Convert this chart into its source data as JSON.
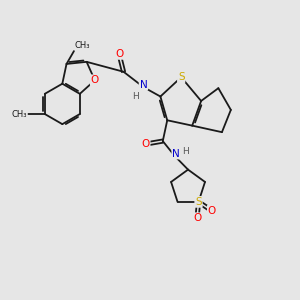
{
  "background_color": "#e6e6e6",
  "fig_size": [
    3.0,
    3.0
  ],
  "dpi": 100,
  "bond_color": "#1a1a1a",
  "bond_width": 1.3,
  "atom_colors": {
    "O": "#ff0000",
    "N": "#0000cd",
    "S": "#ccaa00",
    "H": "#555555",
    "C": "#1a1a1a"
  },
  "font_size": 7.5,
  "font_size_small": 6.5,
  "font_size_methyl": 6.0
}
